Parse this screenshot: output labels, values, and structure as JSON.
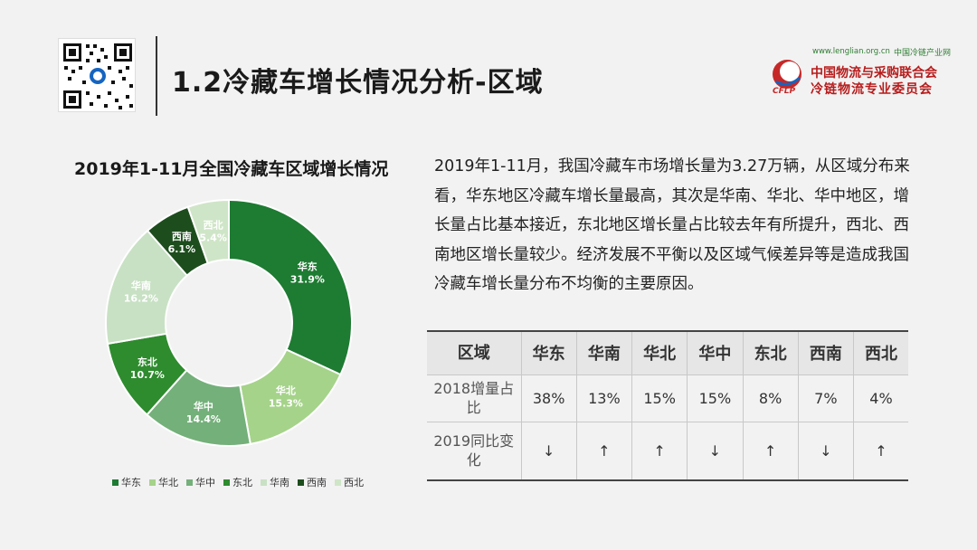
{
  "header": {
    "title": "1.2冷藏车增长情况分析-区域",
    "logo": {
      "url": "www.lenglian.org.cn",
      "network": "中国冷链产业网",
      "org_line1": "中国物流与采购联合会",
      "org_line2": "冷链物流专业委员会",
      "abbr": "CFLP"
    }
  },
  "description": "2019年1-11月，我国冷藏车市场增长量为3.27万辆，从区域分布来看，华东地区冷藏车增长量最高，其次是华南、华北、华中地区，增长量占比基本接近，东北地区增长量占比较去年有所提升，西北、西南地区增长量较少。经济发展不平衡以及区域气候差异等是造成我国冷藏车增长量分布不均衡的主要原因。",
  "chart_data": {
    "type": "pie",
    "title": "2019年1-11月全国冷藏车区域增长情况",
    "donut": true,
    "categories": [
      "华东",
      "华北",
      "华中",
      "东北",
      "华南",
      "西南",
      "西北"
    ],
    "values": [
      31.9,
      15.3,
      14.4,
      10.7,
      16.2,
      6.1,
      5.4
    ],
    "labels": [
      "31.9%",
      "15.3%",
      "14.4%",
      "10.7%",
      "16.2%",
      "6.1%",
      "5.4%"
    ],
    "colors": [
      "#1e7b32",
      "#a5d38a",
      "#74b07a",
      "#2e8b2e",
      "#c8e1c4",
      "#1d4d1d",
      "#cfe5c7"
    ],
    "label_colors": [
      "#ffffff",
      "#ffffff",
      "#ffffff",
      "#ffffff",
      "#ffffff",
      "#ffffff",
      "#ffffff"
    ],
    "legend_position": "bottom"
  },
  "table": {
    "header_label": "区域",
    "regions": [
      "华东",
      "华南",
      "华北",
      "华中",
      "东北",
      "西南",
      "西北"
    ],
    "row1_label": "2018增量占比",
    "row1_values": [
      "38%",
      "13%",
      "15%",
      "15%",
      "8%",
      "7%",
      "4%"
    ],
    "row2_label": "2019同比变化",
    "row2_values": [
      "↓",
      "↑",
      "↑",
      "↓",
      "↑",
      "↓",
      "↑"
    ]
  }
}
